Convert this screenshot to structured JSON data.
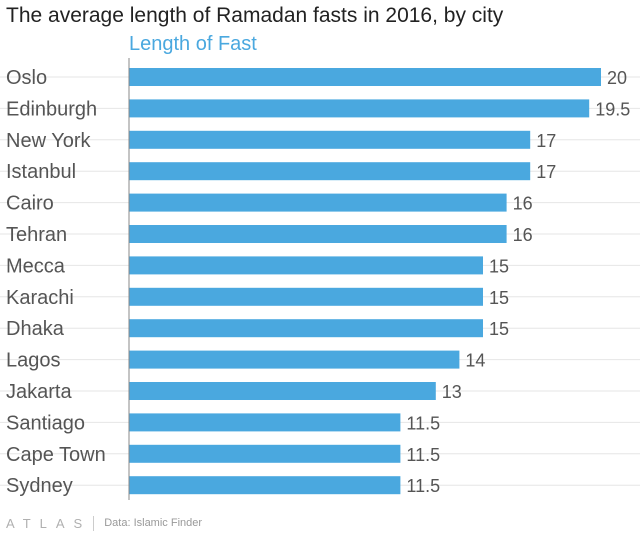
{
  "header": {
    "title": "The average length of Ramadan fasts in 2016, by city",
    "series_label": "Length of Fast"
  },
  "footer": {
    "logo": "ATLAS",
    "source": "Data: Islamic Finder"
  },
  "colors": {
    "bar": "#4aa8df",
    "title": "#222222",
    "category_label": "#555555",
    "value_label": "#555555",
    "gridline": "#e6e6e6",
    "axis": "#888888"
  },
  "chart_data": {
    "type": "bar",
    "orientation": "horizontal",
    "title": "The average length of Ramadan fasts in 2016, by city",
    "series": [
      {
        "name": "Length of Fast",
        "values": [
          20,
          19.5,
          17,
          17,
          16,
          16,
          15,
          15,
          15,
          14,
          13,
          11.5,
          11.5,
          11.5
        ]
      }
    ],
    "categories": [
      "Oslo",
      "Edinburgh",
      "New York",
      "Istanbul",
      "Cairo",
      "Tehran",
      "Mecca",
      "Karachi",
      "Dhaka",
      "Lagos",
      "Jakarta",
      "Santiago",
      "Cape Town",
      "Sydney"
    ],
    "value_labels": [
      "20",
      "19.5",
      "17",
      "17",
      "16",
      "16",
      "15",
      "15",
      "15",
      "14",
      "13",
      "11.5",
      "11.5",
      "11.5"
    ],
    "xlim": [
      0,
      20
    ],
    "grid": true,
    "legend": "top"
  }
}
